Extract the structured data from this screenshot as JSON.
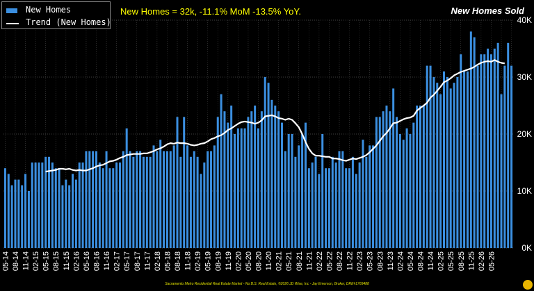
{
  "chart_data": {
    "type": "bar",
    "title": "New Homes Sold",
    "subtitle": "New Homes = 32k, -11.1% MoM -13.5% YoY.",
    "ylim": [
      0,
      40000
    ],
    "y_tick_labels": [
      "0K",
      "10K",
      "20K",
      "30K",
      "40K"
    ],
    "y_tick_values": [
      0,
      10000,
      20000,
      30000,
      40000
    ],
    "grid": true,
    "legend_position": "top-left",
    "x_tick_labels": [
      "05-14",
      "08-14",
      "11-14",
      "02-15",
      "05-15",
      "08-15",
      "11-15",
      "02-16",
      "05-16",
      "08-16",
      "11-16",
      "02-17",
      "05-17",
      "08-17",
      "11-17",
      "02-18",
      "05-18",
      "08-18",
      "11-18",
      "02-19",
      "05-19",
      "08-19",
      "11-19",
      "02-20",
      "05-20",
      "08-20",
      "11-20",
      "02-21",
      "05-21",
      "08-21",
      "11-21",
      "02-22",
      "05-22",
      "08-22",
      "11-22",
      "02-23",
      "05-23",
      "08-23",
      "11-23",
      "02-24",
      "05-24",
      "08-24",
      "11-24",
      "02-25",
      "05-25",
      "08-25",
      "11-25",
      "02-26",
      "05-26"
    ],
    "series": [
      {
        "name": "New Homes",
        "color": "#3b8fe0",
        "values": [
          14000,
          13000,
          11000,
          12000,
          12000,
          11000,
          13000,
          10000,
          15000,
          15000,
          15000,
          15000,
          16000,
          16000,
          15000,
          14000,
          14000,
          11000,
          12000,
          11000,
          13000,
          12000,
          15000,
          15000,
          17000,
          17000,
          17000,
          17000,
          15000,
          14000,
          17000,
          14000,
          14000,
          15000,
          15000,
          17000,
          21000,
          17000,
          16000,
          17000,
          17000,
          16000,
          16000,
          16000,
          18000,
          17000,
          19000,
          17000,
          17000,
          17000,
          18000,
          23000,
          16000,
          23000,
          18000,
          16000,
          17000,
          16000,
          13000,
          15000,
          17000,
          17000,
          18000,
          23000,
          27000,
          24000,
          22000,
          25000,
          20000,
          21000,
          21000,
          21000,
          23000,
          24000,
          25000,
          21000,
          24000,
          30000,
          29000,
          26000,
          25000,
          24000,
          22000,
          17000,
          20000,
          20000,
          16000,
          18000,
          20000,
          22000,
          14000,
          15000,
          16000,
          13000,
          20000,
          14000,
          14000,
          16000,
          15000,
          17000,
          17000,
          14000,
          14000,
          16000,
          13000,
          15000,
          19000,
          16000,
          18000,
          18000,
          23000,
          23000,
          24000,
          25000,
          24000,
          28000,
          23000,
          20000,
          19000,
          21000,
          20000,
          22000,
          25000,
          25000,
          25000,
          32000,
          32000,
          30000,
          29000,
          27000,
          31000,
          30000,
          28000,
          29000,
          30000,
          34000,
          31000,
          31000,
          38000,
          37000,
          32000,
          34000,
          34000,
          35000,
          34000,
          35000,
          36000,
          27000,
          32000,
          36000,
          32000
        ]
      },
      {
        "name": "Trend (New Homes)",
        "color": "#ffffff",
        "values": [
          null,
          null,
          null,
          null,
          null,
          null,
          null,
          null,
          null,
          null,
          null,
          null,
          13400,
          13500,
          13600,
          13700,
          13900,
          13900,
          13800,
          13900,
          13700,
          13600,
          13700,
          13600,
          13600,
          13800,
          14000,
          14300,
          14500,
          14600,
          14900,
          15200,
          15300,
          15500,
          15800,
          16000,
          16300,
          16400,
          16500,
          16500,
          16500,
          16600,
          16600,
          16800,
          17000,
          17300,
          17500,
          17800,
          18200,
          18400,
          18300,
          18500,
          18400,
          18400,
          18300,
          18100,
          18000,
          18100,
          18300,
          18400,
          18700,
          19100,
          19300,
          19600,
          19800,
          20200,
          20700,
          21000,
          21400,
          21800,
          22100,
          22200,
          22100,
          22000,
          21800,
          22000,
          22400,
          23100,
          23200,
          23300,
          23100,
          22800,
          22700,
          22500,
          22700,
          22500,
          21900,
          21200,
          20000,
          18600,
          17400,
          16600,
          16200,
          16200,
          16100,
          16000,
          16000,
          15700,
          15700,
          15600,
          15400,
          15300,
          15500,
          15700,
          15600,
          15800,
          16000,
          16300,
          16800,
          17400,
          18000,
          18800,
          19600,
          20200,
          21000,
          21900,
          22000,
          22300,
          22600,
          22800,
          22900,
          23200,
          24100,
          24600,
          25000,
          25500,
          26400,
          26900,
          27600,
          28300,
          29100,
          29400,
          29800,
          30300,
          30600,
          30900,
          31100,
          31300,
          31500,
          31800,
          32200,
          32500,
          32700,
          32800,
          32700,
          33000,
          32700,
          32500,
          32400
        ]
      }
    ]
  },
  "footer": "Sacramento Metro Residential Real Estate Market - No B.S. Real Estate, ©2026 JD Wise, Inc - Jay Emerson, Broker, DRE#1769488"
}
